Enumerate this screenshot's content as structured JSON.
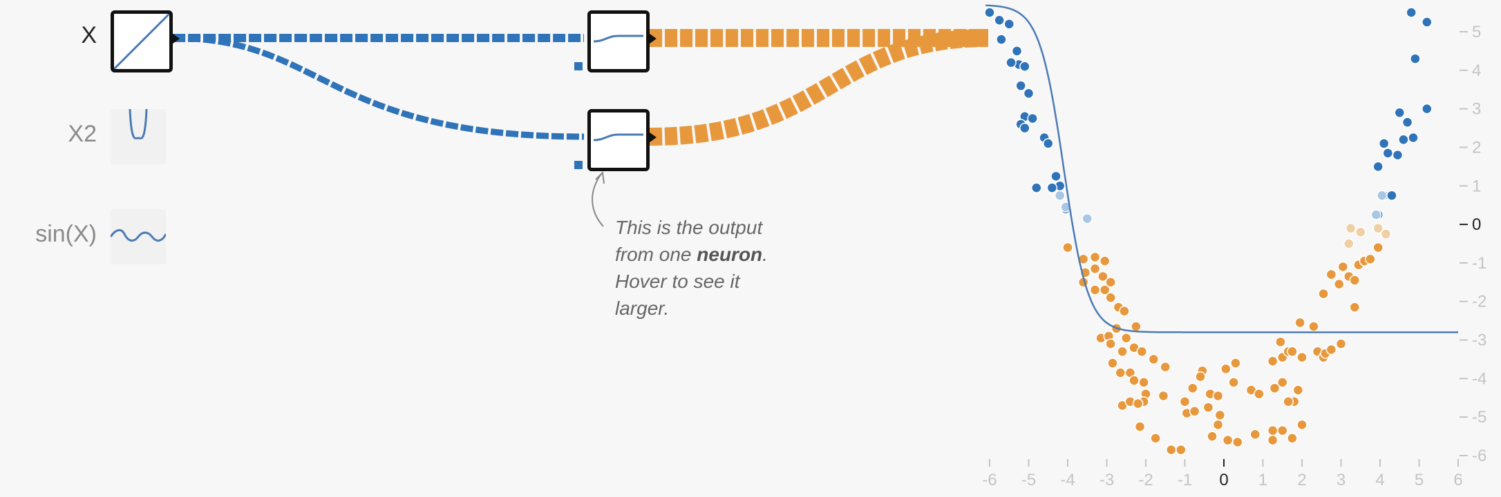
{
  "features": [
    {
      "label": "X",
      "active": true,
      "icon": "linear-icon"
    },
    {
      "label": "X2",
      "active": false,
      "icon": "parabola-icon"
    },
    {
      "label": "sin(X)",
      "active": false,
      "icon": "sine-wave-icon"
    }
  ],
  "annotation": {
    "line1": "This is the output",
    "line2_pre": "from one ",
    "line2_bold": "neuron",
    "line2_post": ".",
    "line3": "Hover to see it",
    "line4": "larger."
  },
  "colors": {
    "blue": "#2f73b8",
    "orange": "#e8983c",
    "line": "#4a7ab4"
  },
  "chart_data": {
    "type": "scatter",
    "xlim": [
      -6,
      6
    ],
    "ylim": [
      -6,
      5
    ],
    "x_ticks": [
      "-6",
      "-5",
      "-4",
      "-3",
      "-2",
      "-1",
      "0",
      "1",
      "2",
      "3",
      "4",
      "5",
      "6"
    ],
    "y_ticks": [
      "5",
      "4",
      "3",
      "2",
      "1",
      "0",
      "-1",
      "-2",
      "-3",
      "-4",
      "-5",
      "-6"
    ],
    "blue_points": [
      [
        -6,
        5.5
      ],
      [
        -5.75,
        5.3
      ],
      [
        -5.5,
        5.2
      ],
      [
        -5.7,
        4.8
      ],
      [
        -5.3,
        4.5
      ],
      [
        -5.25,
        4.15
      ],
      [
        -5.45,
        4.2
      ],
      [
        -5.1,
        4.1
      ],
      [
        -5.2,
        3.6
      ],
      [
        -5,
        3.4
      ],
      [
        -5.1,
        2.8
      ],
      [
        -4.9,
        2.75
      ],
      [
        -5.2,
        2.6
      ],
      [
        -5.1,
        2.5
      ],
      [
        -4.6,
        2.25
      ],
      [
        -4.5,
        2.1
      ],
      [
        -4.3,
        1.25
      ],
      [
        -4.2,
        1
      ],
      [
        -4.8,
        0.95
      ],
      [
        -4.4,
        0.95
      ],
      [
        -4.2,
        0.75
      ],
      [
        -4.05,
        0.4
      ],
      [
        -3.5,
        0.15
      ],
      [
        4.8,
        5.5
      ],
      [
        5.2,
        5.25
      ],
      [
        4.9,
        4.3
      ],
      [
        5.2,
        3
      ],
      [
        4.5,
        2.9
      ],
      [
        4.7,
        2.65
      ],
      [
        4.85,
        2.25
      ],
      [
        4.6,
        2.2
      ],
      [
        4.1,
        2.1
      ],
      [
        4.2,
        1.85
      ],
      [
        4.45,
        1.8
      ],
      [
        3.95,
        1.5
      ],
      [
        4.1,
        0.75
      ],
      [
        4.3,
        0.75
      ],
      [
        3.95,
        0.25
      ]
    ],
    "light_blue_points": [
      [
        -4.2,
        0.75
      ],
      [
        -4.05,
        0.45
      ],
      [
        -3.5,
        0.15
      ],
      [
        4.05,
        0.75
      ],
      [
        3.9,
        0.25
      ]
    ],
    "light_orange_points": [
      [
        3.25,
        -0.1
      ],
      [
        3.5,
        -0.2
      ],
      [
        3.95,
        -0.1
      ],
      [
        4.15,
        -0.25
      ],
      [
        3.2,
        -0.5
      ]
    ],
    "orange_points": [
      [
        -4,
        -0.6
      ],
      [
        -3.6,
        -0.9
      ],
      [
        -3.3,
        -0.85
      ],
      [
        -3.05,
        -0.95
      ],
      [
        -3.3,
        -1.15
      ],
      [
        -3.55,
        -1.25
      ],
      [
        -3.1,
        -1.35
      ],
      [
        -2.9,
        -1.5
      ],
      [
        -3.6,
        -1.5
      ],
      [
        -3.3,
        -1.7
      ],
      [
        -3.05,
        -1.7
      ],
      [
        -2.9,
        -1.9
      ],
      [
        -2.7,
        -2.15
      ],
      [
        -2.55,
        -2.25
      ],
      [
        -2.25,
        -2.65
      ],
      [
        -2.75,
        -2.7
      ],
      [
        -3.15,
        -2.95
      ],
      [
        -2.95,
        -2.9
      ],
      [
        -2.9,
        -3.1
      ],
      [
        -2.5,
        -2.95
      ],
      [
        -2.6,
        -3.3
      ],
      [
        -2.3,
        -3.2
      ],
      [
        -2.1,
        -3.3
      ],
      [
        -1.8,
        -3.5
      ],
      [
        -1.5,
        -3.7
      ],
      [
        -2.05,
        -4.1
      ],
      [
        -2.85,
        -3.6
      ],
      [
        -2.65,
        -3.85
      ],
      [
        -2.4,
        -3.85
      ],
      [
        -2.3,
        -4.05
      ],
      [
        -2,
        -4.4
      ],
      [
        -2.05,
        -4.6
      ],
      [
        -2.6,
        -4.7
      ],
      [
        -2.4,
        -4.6
      ],
      [
        -2.2,
        -4.65
      ],
      [
        -1.55,
        -4.45
      ],
      [
        -1,
        -4.6
      ],
      [
        -0.95,
        -4.9
      ],
      [
        -0.8,
        -4.25
      ],
      [
        -0.75,
        -4.85
      ],
      [
        -0.35,
        -4.4
      ],
      [
        -0.4,
        -4.75
      ],
      [
        -0.15,
        -4.45
      ],
      [
        -0.55,
        -3.8
      ],
      [
        -0.6,
        -3.95
      ],
      [
        -0.1,
        -4.95
      ],
      [
        -0.15,
        -5.2
      ],
      [
        -2.15,
        -5.25
      ],
      [
        -1.75,
        -5.55
      ],
      [
        -1.35,
        -5.85
      ],
      [
        -1.1,
        -5.85
      ],
      [
        -0.3,
        -5.5
      ],
      [
        0.1,
        -5.6
      ],
      [
        0.25,
        -4.1
      ],
      [
        0.05,
        -3.75
      ],
      [
        0.3,
        -3.6
      ],
      [
        0.7,
        -4.3
      ],
      [
        0.9,
        -4.4
      ],
      [
        1.3,
        -4.25
      ],
      [
        1.5,
        -4.1
      ],
      [
        1.8,
        -4.6
      ],
      [
        1.65,
        -4.6
      ],
      [
        1.9,
        -4.3
      ],
      [
        2,
        -5.2
      ],
      [
        1.5,
        -5.35
      ],
      [
        1.25,
        -5.35
      ],
      [
        0.8,
        -5.45
      ],
      [
        1.75,
        -5.55
      ],
      [
        1.25,
        -5.6
      ],
      [
        0.35,
        -5.65
      ],
      [
        1.25,
        -3.55
      ],
      [
        1.5,
        -3.45
      ],
      [
        1.65,
        -3.3
      ],
      [
        1.75,
        -3.3
      ],
      [
        2,
        -3.45
      ],
      [
        1.45,
        -3.05
      ],
      [
        1.95,
        -2.55
      ],
      [
        2.3,
        -2.65
      ],
      [
        2.4,
        -3.3
      ],
      [
        2.55,
        -3.45
      ],
      [
        2.6,
        -3.35
      ],
      [
        2.75,
        -3.25
      ],
      [
        3,
        -3.1
      ],
      [
        2.55,
        -1.8
      ],
      [
        2.75,
        -1.3
      ],
      [
        2.95,
        -1.55
      ],
      [
        3.05,
        -1.1
      ],
      [
        3.2,
        -1.35
      ],
      [
        3.35,
        -1.45
      ],
      [
        3.35,
        -2.15
      ],
      [
        3.45,
        -1.05
      ],
      [
        3.6,
        -0.95
      ],
      [
        3.75,
        -0.9
      ],
      [
        3.95,
        -0.6
      ]
    ],
    "curve_note": "neuron output line",
    "grid": false
  }
}
